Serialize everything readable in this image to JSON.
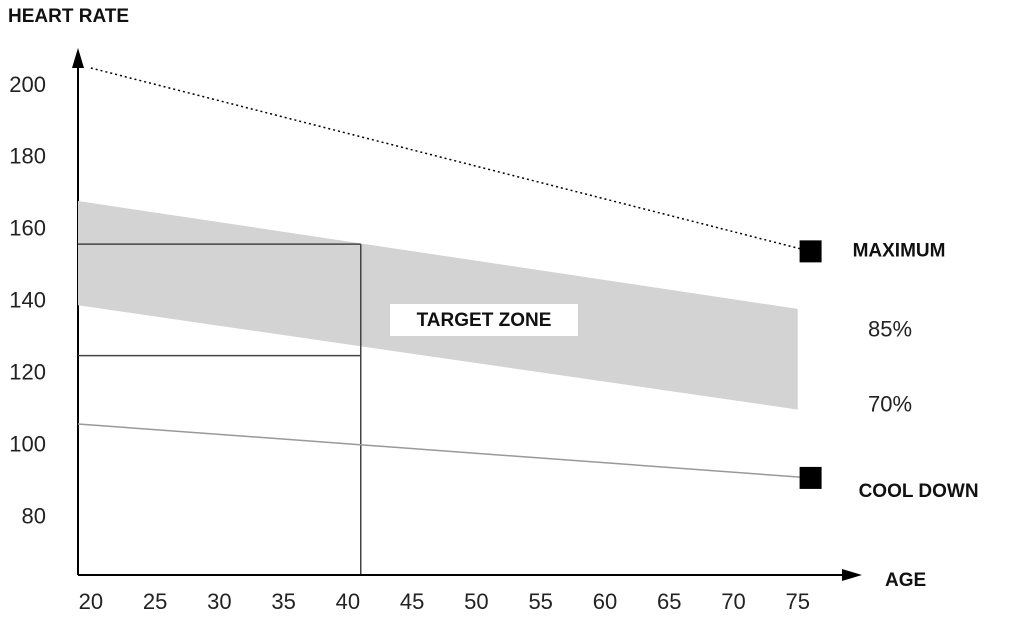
{
  "chart_data": {
    "type": "line",
    "y_label": "HEART RATE",
    "x_label": "AGE",
    "xlim": [
      19,
      80
    ],
    "ylim": [
      64,
      210
    ],
    "xticks": [
      20,
      25,
      30,
      35,
      40,
      45,
      50,
      55,
      60,
      65,
      70,
      75
    ],
    "yticks": [
      80,
      100,
      120,
      140,
      160,
      180,
      200
    ],
    "series": [
      {
        "name": "MAXIMUM",
        "color": "#000000",
        "style": "dotted",
        "marker": "square",
        "x": [
          20,
          76
        ],
        "values": [
          205,
          154
        ]
      },
      {
        "name": "COOL DOWN",
        "color": "#999999",
        "style": "solid",
        "marker": "square",
        "x": [
          19,
          76
        ],
        "values": [
          106,
          91
        ]
      }
    ],
    "band": {
      "color": "#d3d3d3",
      "x": [
        19,
        75
      ],
      "upper": [
        168,
        138
      ],
      "lower": [
        139,
        110
      ],
      "upper_label": "85%",
      "lower_label": "70%"
    },
    "target_zone": {
      "label": "TARGET ZONE",
      "age": 41,
      "high": 156,
      "low": 125
    }
  }
}
